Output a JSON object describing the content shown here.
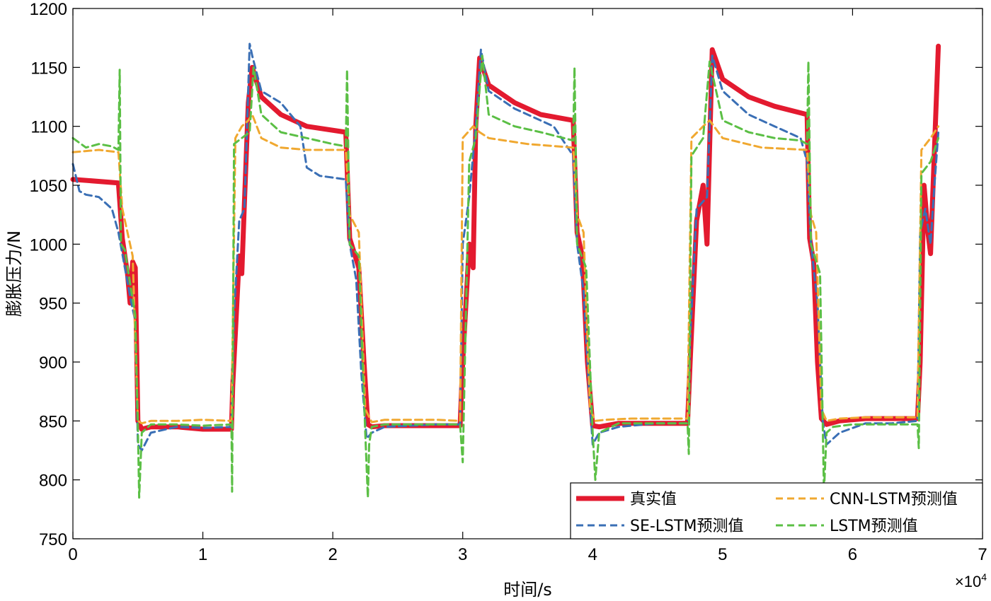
{
  "chart_data": {
    "type": "line",
    "xlabel": "时间/s",
    "ylabel": "膨胀压力/N",
    "x_multiplier_text": "×10",
    "x_multiplier_exp": "4",
    "xlim": [
      0,
      7
    ],
    "ylim": [
      750,
      1200
    ],
    "xticks": [
      "0",
      "1",
      "2",
      "3",
      "4",
      "5",
      "6",
      "7"
    ],
    "yticks": [
      "750",
      "800",
      "850",
      "900",
      "950",
      "1000",
      "1050",
      "1100",
      "1150",
      "1200"
    ],
    "grid": false,
    "legend_position": "bottom-right",
    "series": [
      {
        "name": "真实值",
        "color": "#e31a2f",
        "style": "solid",
        "x": [
          0,
          0.35,
          0.38,
          0.42,
          0.44,
          0.46,
          0.48,
          0.5,
          0.53,
          0.6,
          0.8,
          1.0,
          1.22,
          1.23,
          1.28,
          1.3,
          1.32,
          1.35,
          1.38,
          1.45,
          1.6,
          1.8,
          2.1,
          2.13,
          2.2,
          2.24,
          2.27,
          2.3,
          2.4,
          2.6,
          2.8,
          2.98,
          3.0,
          3.05,
          3.08,
          3.1,
          3.13,
          3.2,
          3.4,
          3.6,
          3.85,
          3.88,
          3.92,
          3.96,
          4.0,
          4.05,
          4.2,
          4.5,
          4.73,
          4.75,
          4.8,
          4.85,
          4.88,
          4.92,
          5.0,
          5.2,
          5.4,
          5.65,
          5.67,
          5.7,
          5.73,
          5.76,
          5.8,
          5.9,
          6.1,
          6.3,
          6.5,
          6.52,
          6.55,
          6.58,
          6.6,
          6.63,
          6.66
        ],
        "y": [
          1055,
          1052,
          1005,
          975,
          950,
          985,
          980,
          850,
          843,
          845,
          845,
          843,
          843,
          880,
          990,
          975,
          1035,
          1120,
          1150,
          1125,
          1110,
          1100,
          1095,
          1005,
          980,
          900,
          847,
          845,
          846,
          846,
          846,
          846,
          900,
          1000,
          980,
          1100,
          1158,
          1135,
          1120,
          1110,
          1105,
          1010,
          990,
          900,
          846,
          845,
          848,
          848,
          848,
          900,
          1020,
          1050,
          1000,
          1165,
          1140,
          1125,
          1117,
          1110,
          1005,
          985,
          900,
          852,
          847,
          850,
          852,
          852,
          852,
          900,
          1050,
          1010,
          992,
          1080,
          1168
        ]
      },
      {
        "name": "SE-LSTM预测值",
        "color": "#3a6fb5",
        "style": "dashed",
        "x": [
          0,
          0.05,
          0.1,
          0.2,
          0.3,
          0.35,
          0.4,
          0.45,
          0.48,
          0.5,
          0.53,
          0.6,
          0.8,
          1.0,
          1.22,
          1.24,
          1.28,
          1.32,
          1.36,
          1.38,
          1.45,
          1.6,
          1.75,
          1.8,
          1.9,
          2.1,
          2.13,
          2.18,
          2.22,
          2.26,
          2.3,
          2.4,
          2.6,
          2.8,
          2.98,
          3.0,
          3.05,
          3.1,
          3.14,
          3.2,
          3.4,
          3.7,
          3.85,
          3.88,
          3.93,
          3.97,
          4.0,
          4.05,
          4.2,
          4.5,
          4.73,
          4.75,
          4.8,
          4.88,
          4.92,
          5.0,
          5.2,
          5.4,
          5.6,
          5.65,
          5.68,
          5.73,
          5.77,
          5.8,
          5.9,
          6.1,
          6.3,
          6.5,
          6.52,
          6.56,
          6.6,
          6.63,
          6.66
        ],
        "y": [
          1068,
          1045,
          1042,
          1040,
          1030,
          1010,
          980,
          950,
          935,
          830,
          825,
          840,
          845,
          844,
          845,
          940,
          1020,
          1030,
          1170,
          1160,
          1130,
          1120,
          1100,
          1065,
          1058,
          1055,
          1000,
          970,
          890,
          835,
          840,
          845,
          846,
          847,
          847,
          1000,
          1040,
          1100,
          1165,
          1130,
          1115,
          1100,
          1075,
          1000,
          960,
          880,
          830,
          840,
          845,
          848,
          848,
          920,
          1030,
          1040,
          1160,
          1130,
          1110,
          1100,
          1090,
          1070,
          1000,
          950,
          850,
          830,
          840,
          848,
          848,
          850,
          1010,
          1030,
          1000,
          1050,
          1095
        ]
      },
      {
        "name": "CNN-LSTM预测值",
        "color": "#f0a830",
        "style": "dashed",
        "x": [
          0,
          0.2,
          0.35,
          0.38,
          0.42,
          0.46,
          0.5,
          0.53,
          0.6,
          0.8,
          1.0,
          1.22,
          1.25,
          1.3,
          1.35,
          1.38,
          1.45,
          1.6,
          1.8,
          2.1,
          2.13,
          2.2,
          2.25,
          2.3,
          2.4,
          2.6,
          2.8,
          2.98,
          3.0,
          3.08,
          3.13,
          3.2,
          3.5,
          3.85,
          3.88,
          3.93,
          3.98,
          4.02,
          4.1,
          4.3,
          4.5,
          4.73,
          4.76,
          4.85,
          4.9,
          5.0,
          5.3,
          5.65,
          5.68,
          5.72,
          5.76,
          5.8,
          5.9,
          6.1,
          6.3,
          6.5,
          6.53,
          6.6,
          6.66
        ],
        "y": [
          1078,
          1080,
          1078,
          1030,
          1010,
          990,
          850,
          848,
          850,
          850,
          851,
          850,
          1090,
          1100,
          1105,
          1110,
          1090,
          1082,
          1080,
          1080,
          1025,
          1010,
          860,
          849,
          851,
          851,
          851,
          850,
          1090,
          1100,
          1095,
          1090,
          1085,
          1082,
          1025,
          1010,
          860,
          850,
          851,
          852,
          852,
          852,
          1090,
          1100,
          1105,
          1090,
          1082,
          1080,
          1025,
          1010,
          860,
          850,
          852,
          853,
          853,
          853,
          1080,
          1090,
          1100
        ]
      },
      {
        "name": "LSTM预测值",
        "color": "#5bbf45",
        "style": "dashed",
        "x": [
          0,
          0.1,
          0.2,
          0.3,
          0.35,
          0.36,
          0.37,
          0.4,
          0.45,
          0.48,
          0.5,
          0.51,
          0.53,
          0.6,
          0.8,
          1.0,
          1.22,
          1.225,
          1.24,
          1.3,
          1.36,
          1.39,
          1.45,
          1.6,
          1.8,
          2.0,
          2.1,
          2.11,
          2.13,
          2.2,
          2.25,
          2.27,
          2.28,
          2.3,
          2.4,
          2.6,
          2.8,
          2.98,
          3.0,
          3.05,
          3.1,
          3.15,
          3.2,
          3.4,
          3.6,
          3.85,
          3.86,
          3.88,
          3.95,
          4.0,
          4.02,
          4.05,
          4.2,
          4.5,
          4.73,
          4.74,
          4.76,
          4.85,
          4.9,
          5.0,
          5.2,
          5.4,
          5.6,
          5.65,
          5.66,
          5.68,
          5.75,
          5.78,
          5.8,
          5.85,
          6.0,
          6.3,
          6.5,
          6.51,
          6.53,
          6.6,
          6.66
        ],
        "y": [
          1090,
          1082,
          1085,
          1083,
          1080,
          1148,
          1000,
          995,
          960,
          940,
          845,
          785,
          840,
          847,
          847,
          846,
          847,
          790,
          1085,
          1090,
          1095,
          1150,
          1110,
          1095,
          1090,
          1085,
          1083,
          1148,
          1000,
          990,
          840,
          785,
          830,
          845,
          847,
          847,
          847,
          847,
          815,
          1070,
          1090,
          1160,
          1110,
          1100,
          1095,
          1088,
          1150,
          1000,
          980,
          840,
          800,
          840,
          848,
          848,
          848,
          822,
          1075,
          1090,
          1155,
          1105,
          1095,
          1090,
          1088,
          1085,
          1155,
          1000,
          975,
          790,
          840,
          845,
          847,
          847,
          847,
          827,
          1060,
          1070,
          1090
        ]
      }
    ]
  }
}
